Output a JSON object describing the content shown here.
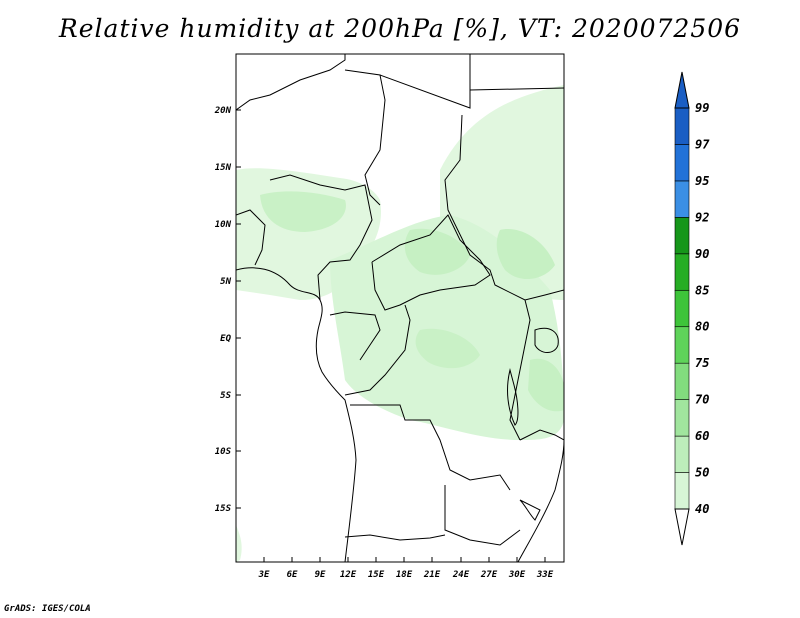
{
  "title": "Relative humidity at 200hPa [%], VT: 2020072506",
  "credit": "GrADS: IGES/COLA",
  "map": {
    "lon_range": [
      0,
      35
    ],
    "lat_range": [
      -20,
      25
    ],
    "lat_ticks": [
      "20N",
      "15N",
      "10N",
      "5N",
      "EQ",
      "5S",
      "10S",
      "15S"
    ],
    "lon_ticks": [
      "3E",
      "6E",
      "9E",
      "12E",
      "15E",
      "18E",
      "21E",
      "24E",
      "27E",
      "30E",
      "33E"
    ]
  },
  "colorbar": {
    "levels": [
      "40",
      "50",
      "60",
      "70",
      "75",
      "80",
      "85",
      "90",
      "92",
      "95",
      "97",
      "99"
    ],
    "colors": [
      "#eefbee",
      "#d7f5d6",
      "#bdedbb",
      "#a1e59e",
      "#82dc7e",
      "#5fd35a",
      "#3ec43a",
      "#26ad24",
      "#16961a",
      "#3b8fe4",
      "#2272d8",
      "#1a5ec4"
    ],
    "extend": "both"
  }
}
